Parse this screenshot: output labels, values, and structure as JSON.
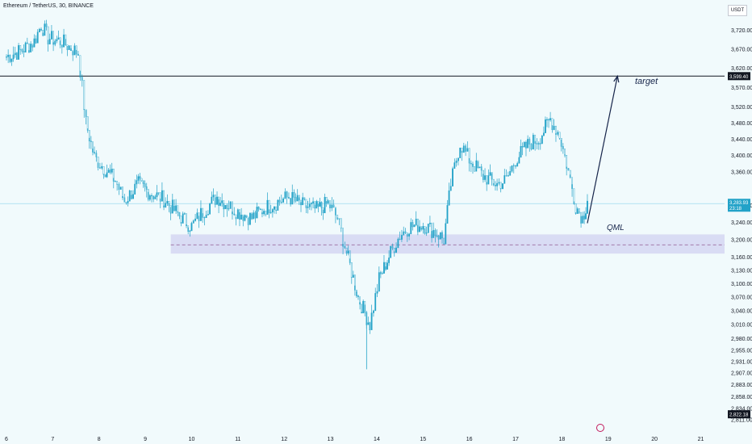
{
  "header": {
    "symbol": "Ethereum / TetherUS, 30, BINANCE",
    "currency": "USDT"
  },
  "colors": {
    "background": "#f1fafc",
    "candle": "#22a2c8",
    "target_line": "#131722",
    "zone_fill": "#d5d6f2",
    "zone_mid": "#9b6b9e",
    "current_price_line": "#9fdaf0",
    "current_price_badge": "#22a2c8",
    "arrow": "#16244a",
    "axis_text": "#131722",
    "event_marker": "#c2185b"
  },
  "chart_data": {
    "type": "line",
    "title": "Ethereum / TetherUS, 30, BINANCE",
    "xlabel": "",
    "ylabel": "",
    "y_scale": "log",
    "ylim": [
      2811,
      3780
    ],
    "y_ticks": [
      "3,720.00",
      "3,670.00",
      "3,620.00",
      "3,570.00",
      "3,520.00",
      "3,480.00",
      "3,440.00",
      "3,400.00",
      "3,360.00",
      "3,280.00",
      "3,240.00",
      "3,200.00",
      "3,160.00",
      "3,130.00",
      "3,100.00",
      "3,070.00",
      "3,040.00",
      "3,010.00",
      "2,980.00",
      "2,955.00",
      "2,931.00",
      "2,907.00",
      "2,883.00",
      "2,858.00",
      "2,834.00",
      "2,811.00"
    ],
    "x_ticks": [
      "6",
      "7",
      "8",
      "9",
      "10",
      "11",
      "12",
      "13",
      "14",
      "15",
      "16",
      "17",
      "18",
      "19",
      "20",
      "21"
    ],
    "x_range": [
      6,
      21.2
    ],
    "series": [
      {
        "values": [
          [
            6.0,
            3650
          ],
          [
            6.3,
            3665
          ],
          [
            6.6,
            3690
          ],
          [
            6.75,
            3735
          ],
          [
            6.9,
            3700
          ],
          [
            7.2,
            3690
          ],
          [
            7.55,
            3660
          ],
          [
            7.72,
            3480
          ],
          [
            7.9,
            3395
          ],
          [
            8.1,
            3370
          ],
          [
            8.35,
            3340
          ],
          [
            8.55,
            3290
          ],
          [
            8.85,
            3330
          ],
          [
            9.1,
            3310
          ],
          [
            9.4,
            3295
          ],
          [
            9.7,
            3260
          ],
          [
            10.0,
            3230
          ],
          [
            10.2,
            3260
          ],
          [
            10.55,
            3300
          ],
          [
            10.8,
            3280
          ],
          [
            11.0,
            3265
          ],
          [
            11.3,
            3250
          ],
          [
            11.6,
            3275
          ],
          [
            11.9,
            3290
          ],
          [
            12.1,
            3300
          ],
          [
            12.4,
            3280
          ],
          [
            12.7,
            3270
          ],
          [
            12.95,
            3285
          ],
          [
            13.15,
            3250
          ],
          [
            13.35,
            3170
          ],
          [
            13.6,
            3070
          ],
          [
            13.85,
            3010
          ],
          [
            14.05,
            3110
          ],
          [
            14.3,
            3170
          ],
          [
            14.5,
            3210
          ],
          [
            14.7,
            3230
          ],
          [
            15.0,
            3235
          ],
          [
            15.3,
            3215
          ],
          [
            15.45,
            3200
          ],
          [
            15.6,
            3330
          ],
          [
            15.8,
            3430
          ],
          [
            16.0,
            3390
          ],
          [
            16.3,
            3350
          ],
          [
            16.6,
            3330
          ],
          [
            16.8,
            3340
          ],
          [
            17.0,
            3390
          ],
          [
            17.3,
            3430
          ],
          [
            17.5,
            3440
          ],
          [
            17.75,
            3490
          ],
          [
            17.95,
            3450
          ],
          [
            18.1,
            3380
          ],
          [
            18.3,
            3280
          ],
          [
            18.45,
            3250
          ],
          [
            18.55,
            3290
          ]
        ]
      }
    ],
    "annotations": {
      "target_price": "3,599.40",
      "target_label": "target",
      "pattern_label": "QML",
      "current_price": "3,283.93",
      "countdown": "23:18",
      "last_axis_price": "2,822.18",
      "zone_top": 3212,
      "zone_mid": 3188,
      "zone_bottom": 3168,
      "zone_x_range": [
        9.55,
        21.2
      ],
      "arrow_from": [
        18.55,
        3238
      ],
      "arrow_to": [
        19.2,
        3599.4
      ]
    }
  }
}
